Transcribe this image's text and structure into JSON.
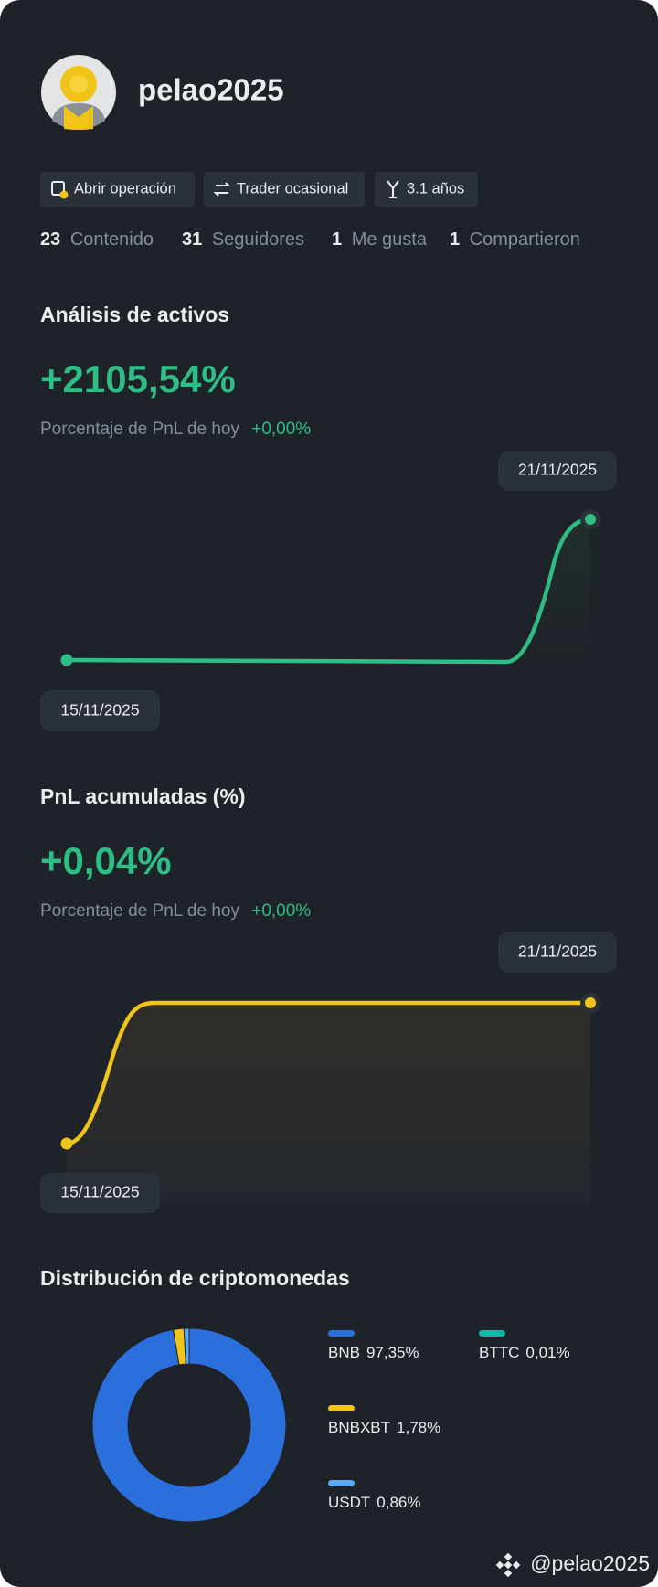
{
  "profile": {
    "username": "pelao2025",
    "tags": [
      "Abrir operación",
      "Trader ocasional",
      "3.1 años"
    ],
    "stats": [
      {
        "value": 23,
        "label": "Contenido"
      },
      {
        "value": 31,
        "label": "Seguidores"
      },
      {
        "value": 1,
        "label": "Me gusta"
      },
      {
        "value": 1,
        "label": "Compartieron"
      }
    ]
  },
  "asset_analysis": {
    "title": "Análisis de activos",
    "value": "+2105,54%",
    "subtitle": "Porcentaje de PnL de hoy",
    "today": "+0,00%",
    "start_date": "15/11/2025",
    "end_date": "21/11/2025"
  },
  "pnl": {
    "title": "PnL acumuladas (%)",
    "value": "+0,04%",
    "subtitle": "Porcentaje de PnL de hoy",
    "today": "+0,00%",
    "start_date": "15/11/2025",
    "end_date": "21/11/2025"
  },
  "chart_data": {
    "type": "pie",
    "title": "Distribución de criptomonedas",
    "categories": [
      "BNB",
      "BTTC",
      "BNBXBT",
      "USDT"
    ],
    "values": [
      97.35,
      0.01,
      1.78,
      0.86
    ],
    "value_labels": [
      "97,35%",
      "0,01%",
      "1,78%",
      "0,86%"
    ],
    "colors": [
      "#2a6fdb",
      "#16b3a8",
      "#f0c419",
      "#5aa8f5"
    ]
  },
  "watermark": "@pelao2025"
}
